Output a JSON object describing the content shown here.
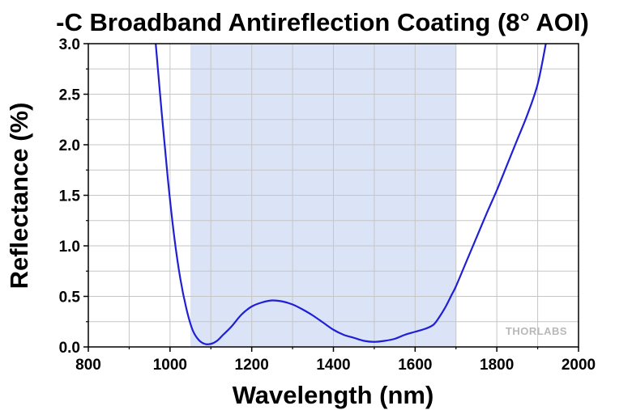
{
  "chart_data": {
    "type": "line",
    "title": "-C Broadband Antireflection Coating (8° AOI)",
    "xlabel": "Wavelength (nm)",
    "ylabel": "Reflectance (%)",
    "xlim": [
      800,
      2000
    ],
    "ylim": [
      0,
      3.0
    ],
    "x_ticks": [
      "800",
      "1000",
      "1200",
      "1400",
      "1600",
      "1800",
      "2000"
    ],
    "y_ticks": [
      "0.0",
      "0.5",
      "1.0",
      "1.5",
      "2.0",
      "2.5",
      "3.0"
    ],
    "grid": true,
    "highlight_band": {
      "x_start": 1050,
      "x_end": 1700,
      "color": "#dbe3f7"
    },
    "line_color": "#1f1fd6",
    "series": [
      {
        "x": [
          965,
          980,
          995,
          1010,
          1025,
          1040,
          1055,
          1070,
          1085,
          1100,
          1115,
          1130,
          1150,
          1175,
          1200,
          1225,
          1250,
          1275,
          1300,
          1325,
          1350,
          1375,
          1400,
          1425,
          1450,
          1475,
          1500,
          1525,
          1550,
          1575,
          1600,
          1625,
          1645,
          1660,
          1675,
          1690,
          1700,
          1725,
          1750,
          1775,
          1800,
          1825,
          1850,
          1875,
          1900,
          1920
        ],
        "y": [
          3.0,
          2.3,
          1.65,
          1.1,
          0.68,
          0.38,
          0.17,
          0.07,
          0.03,
          0.03,
          0.06,
          0.12,
          0.2,
          0.32,
          0.4,
          0.44,
          0.46,
          0.45,
          0.42,
          0.37,
          0.31,
          0.24,
          0.17,
          0.12,
          0.09,
          0.06,
          0.05,
          0.06,
          0.08,
          0.12,
          0.15,
          0.18,
          0.22,
          0.3,
          0.4,
          0.52,
          0.6,
          0.84,
          1.08,
          1.32,
          1.55,
          1.8,
          2.05,
          2.3,
          2.6,
          3.0
        ]
      }
    ]
  },
  "watermark": "THORLABS"
}
